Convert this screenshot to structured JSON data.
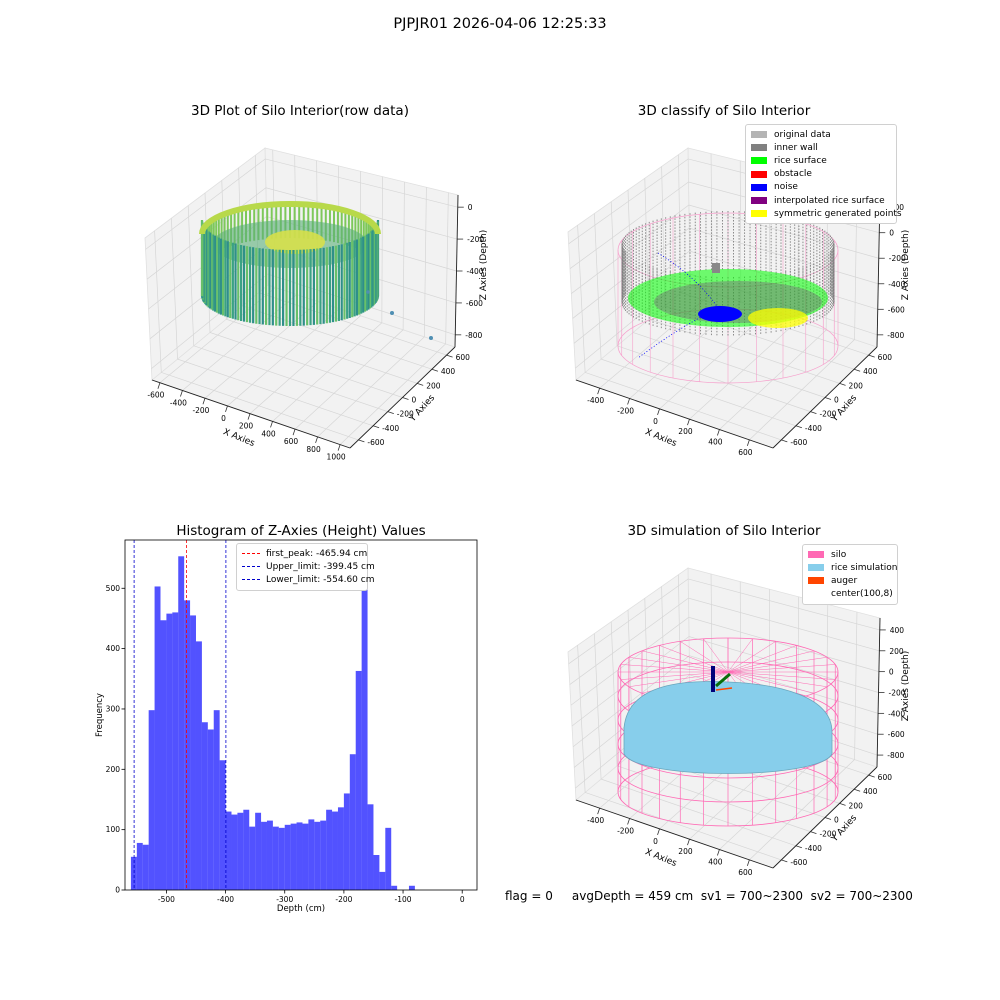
{
  "page": {
    "suptitle": "PJPJR01 2026-04-06 12:25:33",
    "status": "flag = 0     avgDepth = 459 cm  sv1 = 700~2300  sv2 = 700~2300"
  },
  "panels": {
    "raw": {
      "title": "3D Plot of Silo Interior(row data)",
      "xlabel": "X Axies",
      "ylabel": "Y Axies",
      "zlabel": "Z Axies (Depth)",
      "xticks": [
        "-600",
        "-400",
        "-200",
        "0",
        "200",
        "400",
        "600",
        "800",
        "1000"
      ],
      "yticks": [
        "600",
        "400",
        "200",
        "0",
        "-200",
        "-400",
        "-600"
      ],
      "zticks": [
        "0",
        "-200",
        "-400",
        "-600",
        "-800"
      ],
      "colors": {
        "low": "#1f8a8c",
        "high": "#e8e43a"
      }
    },
    "classify": {
      "title": "3D classify of Silo Interior",
      "xlabel": "X Axies",
      "ylabel": "Y Axies",
      "zlabel": "Z Axies (Depth)",
      "xticks": [
        "-400",
        "-200",
        "0",
        "200",
        "400",
        "600"
      ],
      "yticks": [
        "600",
        "400",
        "200",
        "0",
        "-200",
        "-400",
        "-600"
      ],
      "zticks": [
        "200",
        "0",
        "-200",
        "-400",
        "-600",
        "-800"
      ],
      "legend": [
        {
          "label": "original data",
          "color": "#b4b4b4"
        },
        {
          "label": "inner wall",
          "color": "#808080"
        },
        {
          "label": "rice surface",
          "color": "#00ff00"
        },
        {
          "label": "obstacle",
          "color": "#ff0000"
        },
        {
          "label": "noise",
          "color": "#0000ff"
        },
        {
          "label": "interpolated rice surface",
          "color": "#800080"
        },
        {
          "label": "symmetric generated points",
          "color": "#ffff00"
        }
      ]
    },
    "simulation": {
      "title": "3D simulation of Silo Interior",
      "xlabel": "X Axies",
      "ylabel": "Y Axies",
      "zlabel": "Z Axies (Depth)",
      "xticks": [
        "-400",
        "-200",
        "0",
        "200",
        "400",
        "600"
      ],
      "yticks": [
        "600",
        "400",
        "200",
        "0",
        "-200",
        "-400",
        "-600"
      ],
      "zticks": [
        "400",
        "200",
        "0",
        "-200",
        "-400",
        "-600",
        "-800"
      ],
      "legend": [
        {
          "label": "silo",
          "color": "#ff69b4"
        },
        {
          "label": "rice simulation",
          "color": "#87ceeb"
        },
        {
          "label": "auger",
          "color": "#ff4500"
        },
        {
          "label": "center(100,8)",
          "color": "#ffffff"
        }
      ]
    }
  },
  "chart_data": {
    "type": "bar",
    "title": "Histogram of Z-Axies (Height) Values",
    "xlabel": "Depth (cm)",
    "ylabel": "Frequency",
    "xlim": [
      -570,
      25
    ],
    "ylim": [
      0,
      580
    ],
    "xticks": [
      -500,
      -400,
      -300,
      -200,
      -100,
      0
    ],
    "yticks": [
      0,
      100,
      200,
      300,
      400,
      500
    ],
    "bin_start": -560,
    "bin_width": 10,
    "color": "#0000ff",
    "values": [
      55,
      78,
      75,
      298,
      503,
      447,
      458,
      460,
      553,
      480,
      455,
      412,
      278,
      266,
      298,
      215,
      130,
      125,
      128,
      133,
      105,
      128,
      113,
      115,
      105,
      103,
      108,
      110,
      112,
      110,
      117,
      113,
      115,
      133,
      130,
      137,
      160,
      225,
      363,
      522,
      142,
      58,
      30,
      103,
      7,
      0,
      0,
      7,
      0
    ],
    "lines": [
      {
        "label": "first_peak: -465.94 cm",
        "x": -465.94,
        "color": "#ff0000"
      },
      {
        "label": "Upper_limit: -399.45 cm",
        "x": -399.45,
        "color": "#0000cc"
      },
      {
        "label": "Lower_limit: -554.60 cm",
        "x": -554.6,
        "color": "#0000cc"
      }
    ],
    "legend_position": "upper-center"
  }
}
